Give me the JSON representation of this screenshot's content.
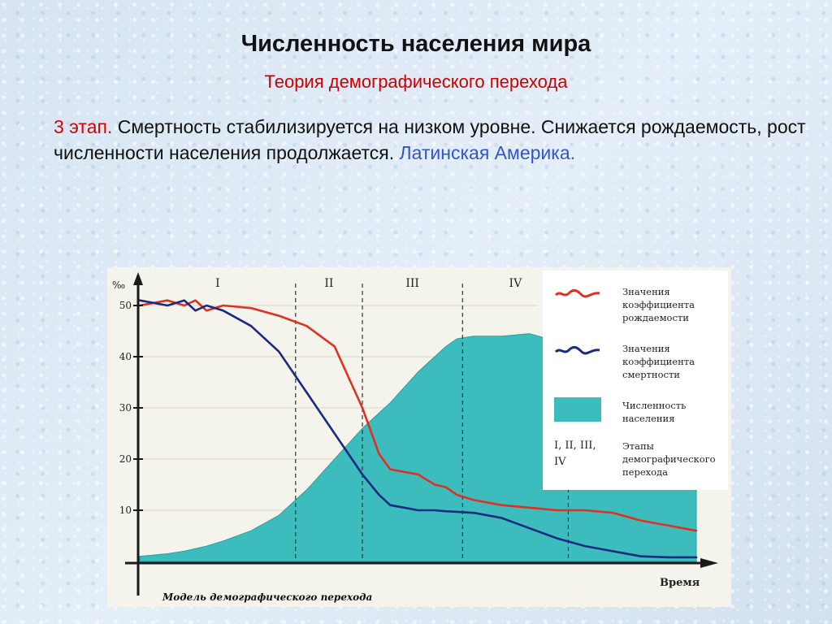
{
  "slide": {
    "title": "Численность населения мира",
    "subtitle": "Теория демографического перехода",
    "stage_label": "3 этап.",
    "body": " Смертность стабилизируется на низком уровне. Снижается рождаемость, рост численности  населения продолжается. ",
    "region": "Латинская Америка."
  },
  "chart_data": {
    "type": "line",
    "title": "Модель демографического перехода",
    "xlabel": "Время",
    "ylabel": "‰",
    "ylim": [
      0,
      55
    ],
    "y_ticks": [
      "10",
      "20",
      "30",
      "40",
      "50"
    ],
    "y_tick_values": [
      10,
      20,
      30,
      40,
      50
    ],
    "stage_labels": [
      "I",
      "II",
      "III",
      "IV"
    ],
    "x": [
      0,
      5,
      8,
      10,
      12,
      15,
      20,
      25,
      30,
      35,
      40,
      43,
      45,
      50,
      53,
      55,
      57,
      60,
      65,
      70,
      75,
      80,
      85,
      90,
      95,
      100
    ],
    "series": [
      {
        "name": "Значения коэффициента рождаемости",
        "color": "#e03020",
        "values": [
          50,
          51,
          50,
          51,
          49,
          50,
          49.5,
          48,
          46,
          42,
          30,
          21,
          18,
          17,
          15,
          14.5,
          13,
          12,
          11,
          10.5,
          10,
          10,
          9.5,
          8,
          7,
          6
        ]
      },
      {
        "name": "Значения коэффициента смертности",
        "color": "#1a2a80",
        "values": [
          51,
          50,
          51,
          49,
          50,
          49,
          46,
          41,
          33,
          25,
          17,
          13,
          11,
          10,
          10,
          9.8,
          9.7,
          9.5,
          8.5,
          6.5,
          4.5,
          3,
          2,
          1,
          0.8,
          0.8
        ]
      },
      {
        "name": "Численность населения",
        "color": "#3cbcbc",
        "values": [
          1,
          1.5,
          2,
          2.5,
          3,
          4,
          6,
          9,
          14,
          20,
          26,
          29,
          31,
          37,
          40,
          42,
          43.5,
          44,
          44,
          44.5,
          43,
          42.5,
          42,
          41,
          42,
          42
        ]
      }
    ],
    "stage_boundaries": [
      28,
      40,
      58,
      77
    ],
    "legend": {
      "placement": "top-right",
      "birth": "Значения коэффициента рождаемости",
      "death": "Значения коэффициента смертности",
      "population": "Численность населения",
      "stages_symbol": "I, II, III, IV",
      "stages_text": "Этапы демографического перехода"
    }
  }
}
